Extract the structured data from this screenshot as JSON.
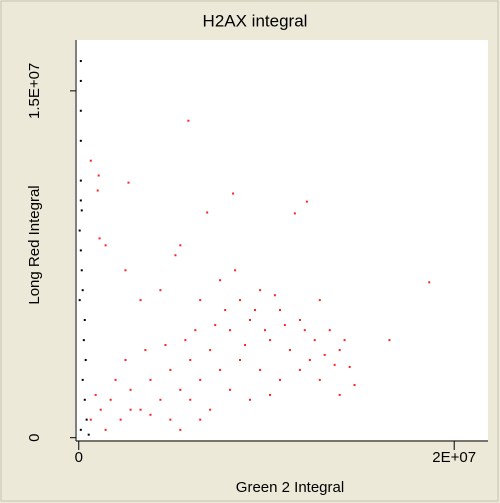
{
  "chart_data": {
    "type": "scatter",
    "title": "H2AX  integral",
    "x_label": "Green 2 Integral",
    "y_label": "Long Red Integral",
    "xlim": [
      -200000,
      21800000
    ],
    "ylim": [
      -100000,
      17200000
    ],
    "xticks": [
      0,
      {
        "value": 20000000,
        "label": "2E+07"
      }
    ],
    "yticks": [
      0,
      {
        "value": 15000000,
        "label": "1.5E+07"
      }
    ],
    "series": [
      {
        "color": "#ff2020",
        "x": [
          5840000,
          2650000,
          1060000,
          1010000,
          640000,
          1110000,
          1430000,
          6840000,
          8220000,
          11510000,
          12150000,
          18670000,
          16550000,
          14430000,
          14160000,
          5410000,
          5150000,
          2490000,
          3290000,
          4350000,
          6470000,
          7530000,
          8590000,
          9660000,
          10720000,
          11780000,
          12840000,
          13370000,
          9120000,
          10190000,
          11250000,
          12310000,
          8060000,
          7000000,
          5940000,
          4880000,
          3820000,
          2760000,
          1700000,
          1170000,
          640000,
          2230000,
          3290000,
          4350000,
          5410000,
          6470000,
          7530000,
          8590000,
          9660000,
          10720000,
          11780000,
          12840000,
          13900000,
          9120000,
          8060000,
          7000000,
          5940000,
          4880000,
          3820000,
          2760000,
          1960000,
          900000,
          1430000,
          8860000,
          9920000,
          10980000,
          12040000,
          10450000,
          9390000,
          8330000,
          7800000,
          7270000,
          6210000,
          5680000,
          4620000,
          3550000,
          2490000,
          12570000,
          13100000,
          13630000,
          14690000,
          13900000,
          10190000,
          6470000,
          5410000
        ],
        "values": [
          13710000,
          11030000,
          11340000,
          10690000,
          11980000,
          8620000,
          8320000,
          9740000,
          10560000,
          9700000,
          10210000,
          6720000,
          4220000,
          3060000,
          4220000,
          8320000,
          7890000,
          7240000,
          5950000,
          6380000,
          5950000,
          6810000,
          5950000,
          6380000,
          5520000,
          5090000,
          5950000,
          4650000,
          5090000,
          4220000,
          3790000,
          3360000,
          4650000,
          3790000,
          3360000,
          2930000,
          2500000,
          2070000,
          1640000,
          1210000,
          780000,
          780000,
          1210000,
          1640000,
          2070000,
          2500000,
          2930000,
          3360000,
          2930000,
          2500000,
          2930000,
          2500000,
          3790000,
          1640000,
          2070000,
          1210000,
          1640000,
          780000,
          990000,
          1210000,
          2500000,
          1850000,
          340000,
          4010000,
          4650000,
          4870000,
          4650000,
          6160000,
          5520000,
          7240000,
          5520000,
          4870000,
          4650000,
          4220000,
          4010000,
          3790000,
          3360000,
          4220000,
          3580000,
          3150000,
          2280000,
          1850000,
          1850000,
          780000,
          340000
        ]
      },
      {
        "color": "#000000",
        "x": [
          110000,
          110000,
          110000,
          110000,
          110000,
          160000,
          110000,
          210000,
          320000,
          270000,
          370000,
          210000,
          320000,
          420000,
          110000,
          530000,
          50000,
          160000,
          50000,
          110000
        ],
        "values": [
          16290000,
          15430000,
          14140000,
          12840000,
          11120000,
          9830000,
          8100000,
          6380000,
          5090000,
          4220000,
          3360000,
          2500000,
          1640000,
          780000,
          340000,
          130000,
          5950000,
          7240000,
          8960000,
          10260000
        ]
      }
    ]
  }
}
